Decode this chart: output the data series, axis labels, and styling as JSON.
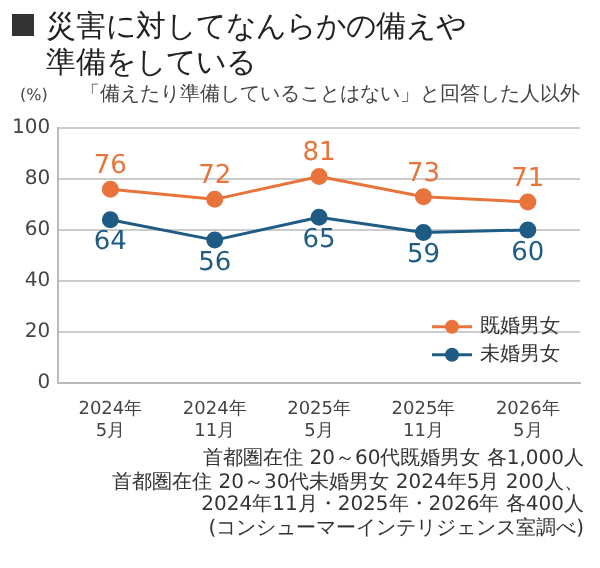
{
  "chart_data": {
    "type": "line",
    "title": "災害に対してなんらかの備えや準備をしている",
    "subtitle": "「備えたり準備していることはない」と回答した人以外",
    "ylabel": "(%)",
    "categories": [
      "2024年\n5月",
      "2024年\n11月",
      "2025年\n5月",
      "2025年\n11月",
      "2026年\n5月"
    ],
    "series": [
      {
        "name": "既婚男女",
        "color": "#e8743b",
        "values": [
          76,
          72,
          81,
          73,
          71
        ]
      },
      {
        "name": "未婚男女",
        "color": "#1f5c85",
        "values": [
          64,
          56,
          65,
          59,
          60
        ]
      }
    ],
    "ylim": [
      0,
      100
    ],
    "yticks": [
      0,
      20,
      40,
      60,
      80,
      100
    ],
    "grid": "y",
    "legend": "bottom right",
    "marker": "circle",
    "line_style": "solid",
    "data_labels": true,
    "annotations": [
      "首都圏在住 20～60代既婚男女 各1,000人",
      "首都圏在住 20～30代未婚男女 2024年5月 200人、",
      "2024年11月・2025年・2026年 各400人",
      "(コンシューマーインテリジェンス室調べ)"
    ]
  }
}
